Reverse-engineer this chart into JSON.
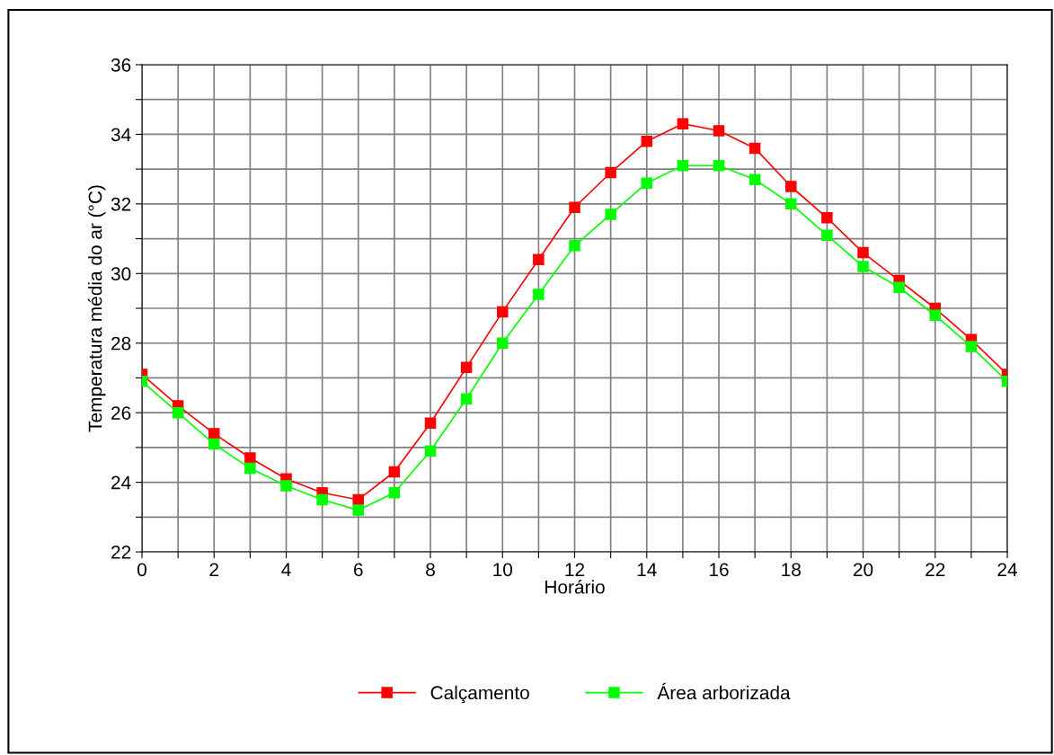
{
  "chart_data": {
    "type": "line",
    "xlabel": "Horário",
    "ylabel": "Temperatura média do ar (°C)",
    "x": [
      0,
      1,
      2,
      3,
      4,
      5,
      6,
      7,
      8,
      9,
      10,
      11,
      12,
      13,
      14,
      15,
      16,
      17,
      18,
      19,
      20,
      21,
      22,
      23,
      24
    ],
    "series": [
      {
        "name": "Calçamento",
        "color": "#ff0000",
        "values": [
          27.1,
          26.2,
          25.4,
          24.7,
          24.1,
          23.7,
          23.5,
          24.3,
          25.7,
          27.3,
          28.9,
          30.4,
          31.9,
          32.9,
          33.8,
          34.3,
          34.1,
          33.6,
          32.5,
          31.6,
          30.6,
          29.8,
          29.0,
          28.1,
          27.1
        ]
      },
      {
        "name": "Área arborizada",
        "color": "#00ff00",
        "values": [
          26.9,
          26.0,
          25.1,
          24.4,
          23.9,
          23.5,
          23.2,
          23.7,
          24.9,
          26.4,
          28.0,
          29.4,
          30.8,
          31.7,
          32.6,
          33.1,
          33.1,
          32.7,
          32.0,
          31.1,
          30.2,
          29.6,
          28.8,
          27.9,
          26.9
        ]
      }
    ],
    "xlim": [
      0,
      24
    ],
    "ylim": [
      22,
      36
    ],
    "xticks": [
      0,
      {
        "value": 1,
        "label": null
      },
      2,
      {
        "value": 3,
        "label": null
      },
      4,
      {
        "value": 5,
        "label": null
      },
      6,
      {
        "value": 7,
        "label": null
      },
      8,
      {
        "value": 9,
        "label": null
      },
      10,
      {
        "value": 11,
        "label": null
      },
      12,
      {
        "value": 13,
        "label": null
      },
      14,
      {
        "value": 15,
        "label": null
      },
      16,
      {
        "value": 17,
        "label": null
      },
      18,
      {
        "value": 19,
        "label": null
      },
      20,
      {
        "value": 21,
        "label": null
      },
      22,
      {
        "value": 23,
        "label": null
      },
      24
    ],
    "yticks": [
      22,
      {
        "value": 23,
        "label": null
      },
      24,
      {
        "value": 25,
        "label": null
      },
      26,
      {
        "value": 27,
        "label": null
      },
      28,
      {
        "value": 29,
        "label": null
      },
      30,
      {
        "value": 31,
        "label": null
      },
      32,
      {
        "value": 33,
        "label": null
      },
      34,
      {
        "value": 35,
        "label": null
      },
      36
    ],
    "grid": true,
    "legend": "bottom",
    "marker": "square",
    "line_style": "solid"
  }
}
